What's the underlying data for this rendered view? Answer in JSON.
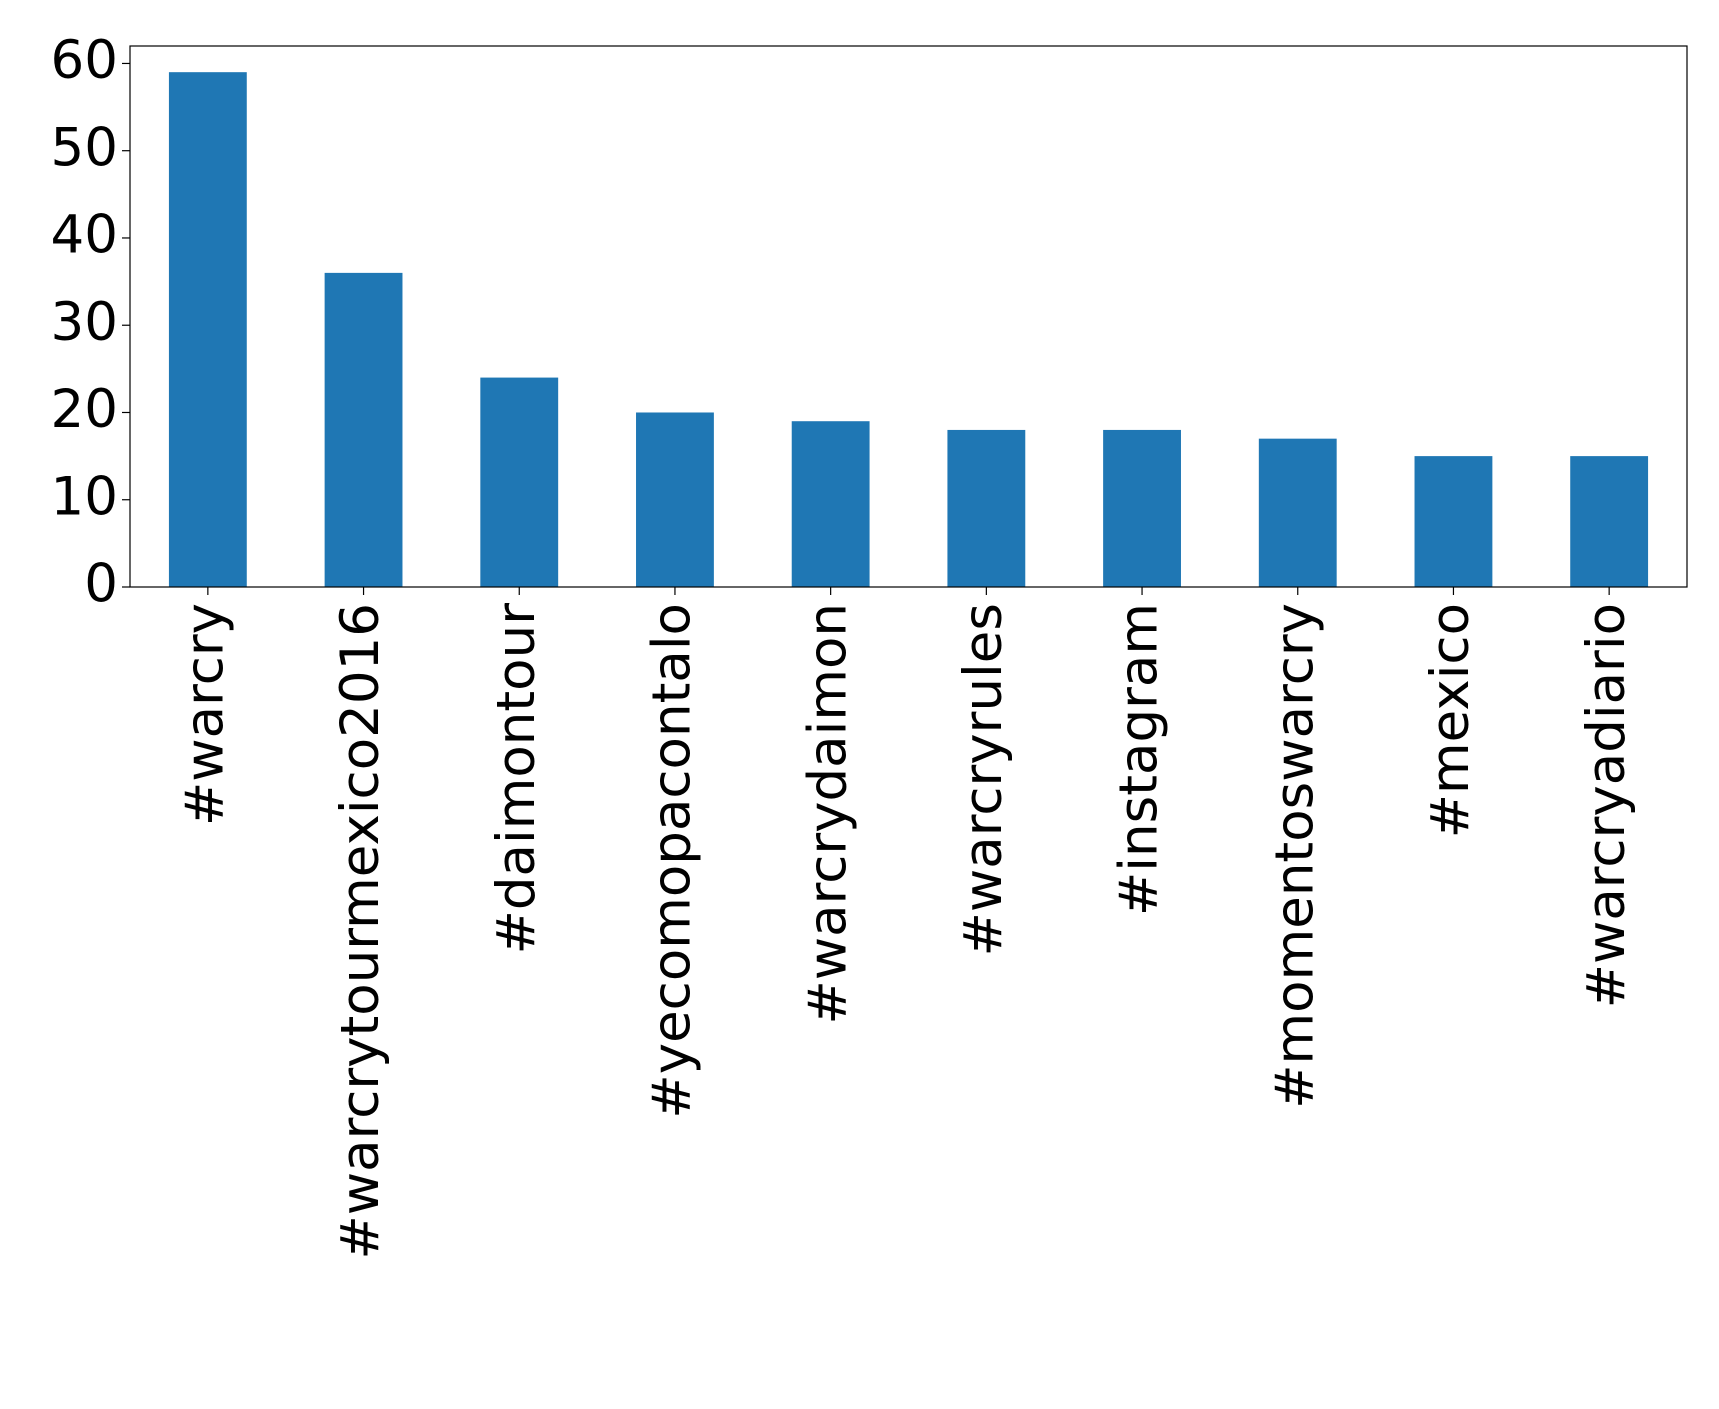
{
  "chart_data": {
    "type": "bar",
    "categories": [
      "#warcry",
      "#warcrytourmexico2016",
      "#daimontour",
      "#yecomopacontalo",
      "#warcrydaimon",
      "#warcryrules",
      "#instagram",
      "#momentoswarcry",
      "#mexico",
      "#warcryadiario"
    ],
    "values": [
      59,
      36,
      24,
      20,
      19,
      18,
      18,
      17,
      15,
      15
    ],
    "color": "#1f77b4",
    "ylim": [
      0,
      62
    ],
    "yticks": [
      0,
      10,
      20,
      30,
      40,
      50,
      60
    ],
    "grid": false
  }
}
